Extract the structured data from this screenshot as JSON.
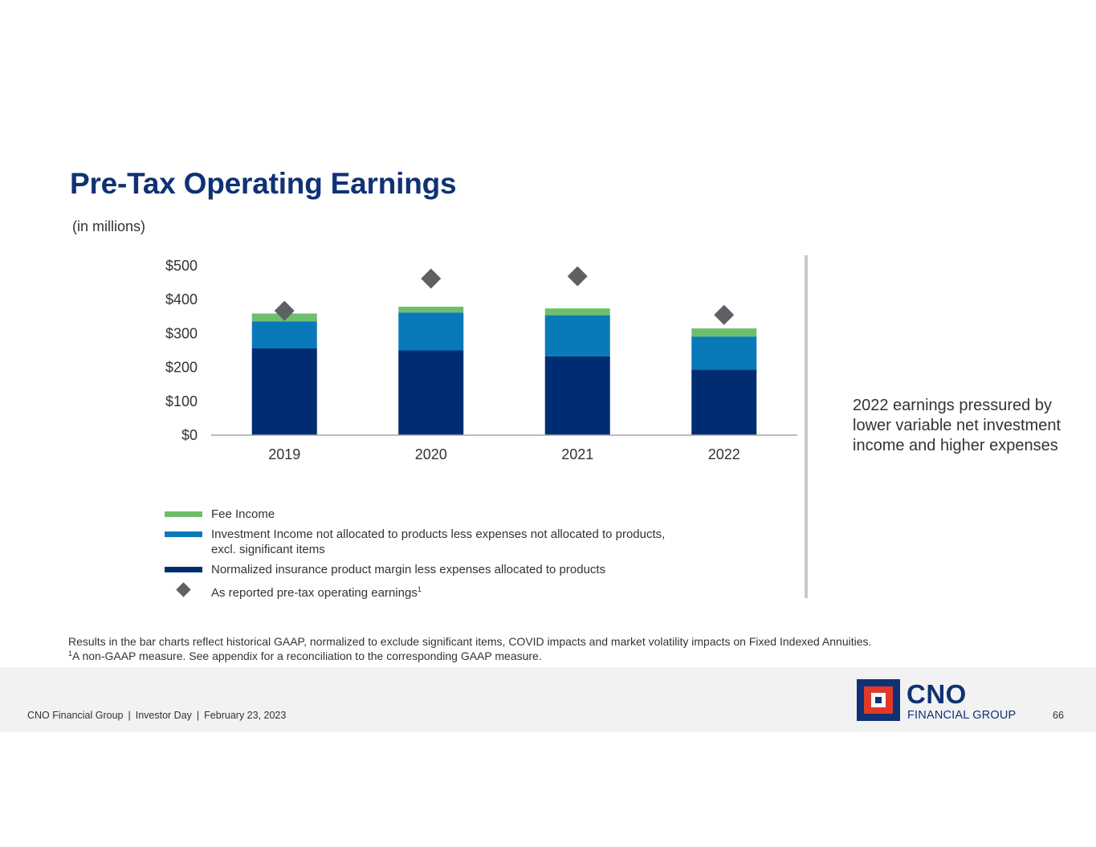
{
  "title": "Pre-Tax Operating Earnings",
  "subtitle": "(in millions)",
  "colors": {
    "title": "#0f3274",
    "fee_income": "#6dbf6b",
    "investment_income": "#0a79b9",
    "normalized_margin": "#002d72",
    "reported": "#5f6064",
    "axis": "#a6a6a6"
  },
  "chart_data": {
    "type": "bar",
    "stacked": true,
    "categories": [
      "2019",
      "2020",
      "2021",
      "2022"
    ],
    "series": [
      {
        "name": "Normalized insurance product margin less expenses allocated to products",
        "key": "normalized_margin",
        "values": [
          256,
          250,
          233,
          193
        ]
      },
      {
        "name": "Investment Income not allocated to products less expenses not allocated to products, excl. significant items",
        "key": "investment_income",
        "values": [
          80,
          112,
          121,
          98
        ]
      },
      {
        "name": "Fee Income",
        "key": "fee_income",
        "values": [
          23,
          17,
          20,
          24
        ]
      }
    ],
    "markers": {
      "name": "As reported pre-tax operating earnings",
      "shape": "diamond",
      "values": [
        367,
        462,
        469,
        355
      ]
    },
    "y_ticks": [
      "$0",
      "$100",
      "$200",
      "$300",
      "$400",
      "$500"
    ],
    "ylim": [
      0,
      500
    ],
    "xlabel": "",
    "ylabel": ""
  },
  "legend": [
    {
      "label": "Fee Income",
      "key": "fee_income"
    },
    {
      "label": "Investment Income not allocated to products less expenses not allocated to products,",
      "label2": "excl. significant items",
      "key": "investment_income"
    },
    {
      "label": "Normalized insurance product margin less expenses allocated to products",
      "key": "normalized_margin"
    },
    {
      "label": "As reported pre-tax operating earnings",
      "sup": "1",
      "key": "reported"
    }
  ],
  "callout": "2022 earnings pressured by lower variable net investment income and higher expenses",
  "footnotes": {
    "line1": "Results in the bar charts reflect historical GAAP, normalized to exclude significant items, COVID impacts and market volatility impacts on Fixed Indexed Annuities.",
    "line2_sup": "1",
    "line2": "A non-GAAP measure. See appendix for a reconciliation to the corresponding GAAP measure."
  },
  "footer": {
    "company": "CNO Financial Group",
    "event": "Investor Day",
    "date": "February 23, 2023",
    "separator": "|",
    "page_number": "66"
  },
  "logo": {
    "wordmark": "CNO",
    "tagline": "FINANCIAL GROUP"
  }
}
